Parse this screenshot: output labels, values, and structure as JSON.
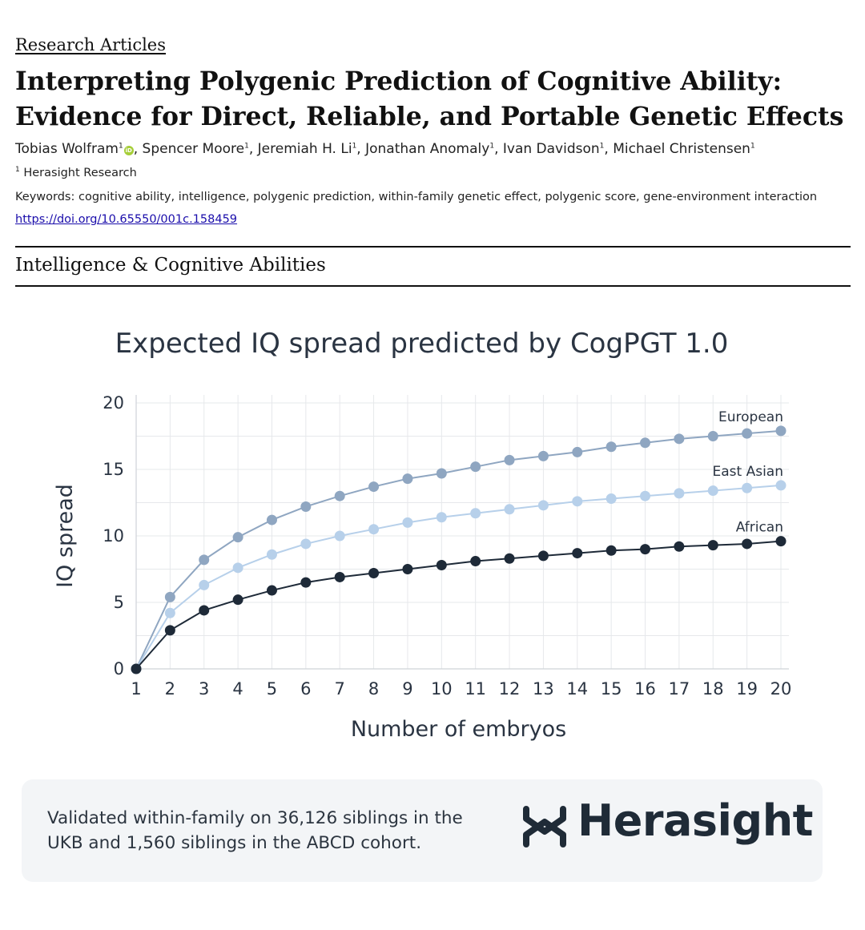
{
  "header": {
    "section_link": "Research Articles",
    "title": "Interpreting Polygenic Prediction of Cognitive Ability: Evidence for Direct, Reliable, and Portable Genetic Effects",
    "authors": [
      {
        "name": "Tobias Wolfram",
        "sup": "1",
        "orcid": true
      },
      {
        "name": "Spencer Moore",
        "sup": "1",
        "orcid": false
      },
      {
        "name": "Jeremiah H. Li",
        "sup": "1",
        "orcid": false
      },
      {
        "name": "Jonathan Anomaly",
        "sup": "1",
        "orcid": false
      },
      {
        "name": "Ivan Davidson",
        "sup": "1",
        "orcid": false
      },
      {
        "name": "Michael Christensen",
        "sup": "1",
        "orcid": false
      }
    ],
    "affiliation_sup": "1",
    "affiliation": "Herasight Research",
    "keywords": "Keywords: cognitive ability, intelligence, polygenic prediction, within-family genetic effect, polygenic score, gene-environment interaction",
    "doi": "https://doi.org/10.65550/001c.158459",
    "category": "Intelligence & Cognitive Abilities"
  },
  "colors": {
    "european": "#8fa6c1",
    "east_asian": "#b7d0ea",
    "african": "#1e2a38",
    "axis_text": "#2a3442",
    "grid": "#e6e8eb"
  },
  "chart_data": {
    "type": "line",
    "title": "Expected IQ spread predicted by CogPGT 1.0",
    "xlabel": "Number of embryos",
    "ylabel": "IQ spread",
    "x": [
      1,
      2,
      3,
      4,
      5,
      6,
      7,
      8,
      9,
      10,
      11,
      12,
      13,
      14,
      15,
      16,
      17,
      18,
      19,
      20
    ],
    "xlim": [
      1,
      20
    ],
    "ylim": [
      0,
      20
    ],
    "yticks": [
      0,
      5,
      10,
      15,
      20
    ],
    "grid": true,
    "series": [
      {
        "name": "European",
        "color_key": "european",
        "values": [
          0,
          5.4,
          8.2,
          9.9,
          11.2,
          12.2,
          13.0,
          13.7,
          14.3,
          14.7,
          15.2,
          15.7,
          16.0,
          16.3,
          16.7,
          17.0,
          17.3,
          17.5,
          17.7,
          17.9
        ]
      },
      {
        "name": "East Asian",
        "color_key": "east_asian",
        "values": [
          0,
          4.2,
          6.3,
          7.6,
          8.6,
          9.4,
          10.0,
          10.5,
          11.0,
          11.4,
          11.7,
          12.0,
          12.3,
          12.6,
          12.8,
          13.0,
          13.2,
          13.4,
          13.6,
          13.8
        ]
      },
      {
        "name": "African",
        "color_key": "african",
        "values": [
          0,
          2.9,
          4.4,
          5.2,
          5.9,
          6.5,
          6.9,
          7.2,
          7.5,
          7.8,
          8.1,
          8.3,
          8.5,
          8.7,
          8.9,
          9.0,
          9.2,
          9.3,
          9.4,
          9.6
        ]
      }
    ]
  },
  "footer": {
    "text": "Validated within-family on 36,126 siblings in the UKB and 1,560 siblings in the ABCD cohort.",
    "logo_text": "Herasight"
  }
}
